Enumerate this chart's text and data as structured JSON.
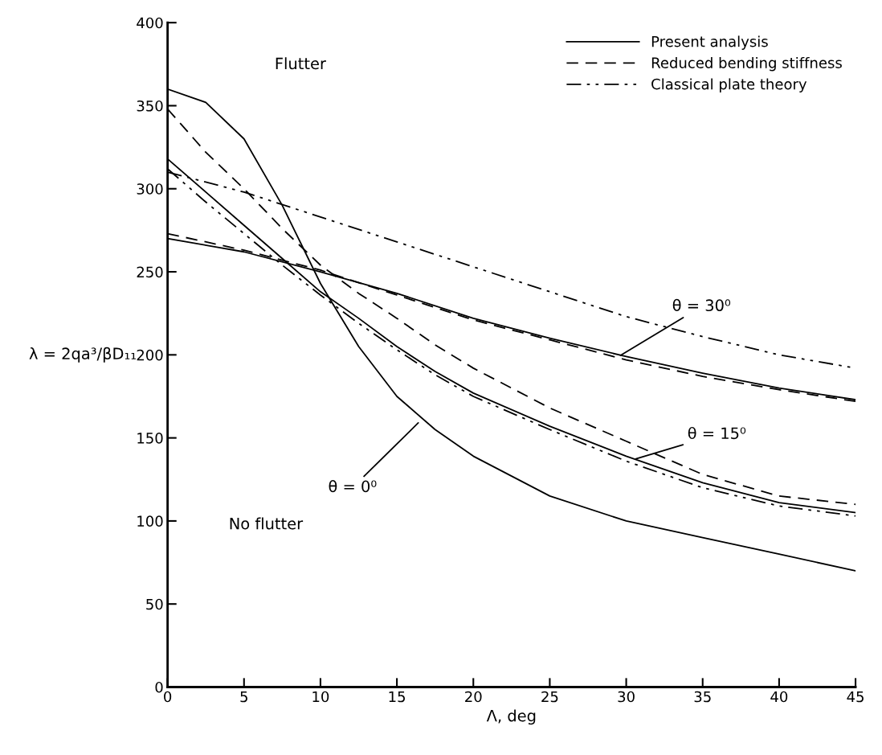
{
  "chart_data": {
    "type": "line",
    "xlabel": "Λ, deg",
    "ylabel": "λ = 2qa³/βD₁₁",
    "xlim": [
      0,
      45
    ],
    "ylim": [
      0,
      400
    ],
    "xticks": [
      0,
      5,
      10,
      15,
      20,
      25,
      30,
      35,
      40,
      45
    ],
    "yticks": [
      0,
      50,
      100,
      150,
      200,
      250,
      300,
      350,
      400
    ],
    "grid": false,
    "legend": "top right",
    "marker": "none",
    "x": [
      0,
      2.5,
      5,
      7.5,
      10,
      12.5,
      15,
      17.5,
      20,
      25,
      30,
      35,
      40,
      45
    ],
    "series": [
      {
        "name": "Present analysis",
        "color": "#000000",
        "line_style": "solid",
        "values": [
          360,
          352,
          330,
          290,
          243,
          205,
          175,
          155,
          139,
          115,
          100,
          90,
          80,
          70
        ]
      },
      {
        "name": "Reduced bending stiffness",
        "color": "#000000",
        "line_style": "dashed",
        "values": [
          348,
          322,
          300,
          276,
          254,
          237,
          222,
          206,
          192,
          168,
          148,
          128,
          115,
          110
        ]
      },
      {
        "color": "#000000",
        "line_style": "solid",
        "values": [
          318,
          298,
          278,
          258,
          238,
          222,
          205,
          190,
          177,
          157,
          139,
          123,
          111,
          105
        ]
      },
      {
        "name": "Classical plate theory",
        "color": "#000000",
        "line_style": "dashdot",
        "values": [
          312,
          292,
          273,
          254,
          236,
          219,
          203,
          188,
          175,
          155,
          136,
          120,
          109,
          103
        ]
      },
      {
        "color": "#000000",
        "line_style": "dashdot",
        "x": [
          0,
          5,
          10,
          15,
          20,
          25,
          30,
          35,
          40,
          45
        ],
        "values": [
          310,
          298,
          283,
          268,
          253,
          238,
          223,
          211,
          200,
          192
        ]
      },
      {
        "color": "#000000",
        "line_style": "solid",
        "x": [
          0,
          5,
          10,
          15,
          20,
          25,
          30,
          35,
          40,
          45
        ],
        "values": [
          270,
          262,
          250,
          237,
          222,
          210,
          199,
          189,
          180,
          173
        ]
      },
      {
        "color": "#000000",
        "line_style": "dashed",
        "x": [
          0,
          5,
          10,
          15,
          20,
          25,
          30,
          35,
          40,
          45
        ],
        "values": [
          273,
          263,
          251,
          236,
          221,
          209,
          197,
          187,
          179,
          172
        ]
      }
    ],
    "annotations": [
      "Flutter",
      "No flutter",
      {
        "text": "θ = 30⁰",
        "x": 29.5,
        "y": 199
      },
      {
        "text": "θ = 15⁰",
        "x": 30.5,
        "y": 137
      },
      {
        "text": "θ = 0⁰",
        "x": 16.5,
        "y": 160
      }
    ]
  }
}
